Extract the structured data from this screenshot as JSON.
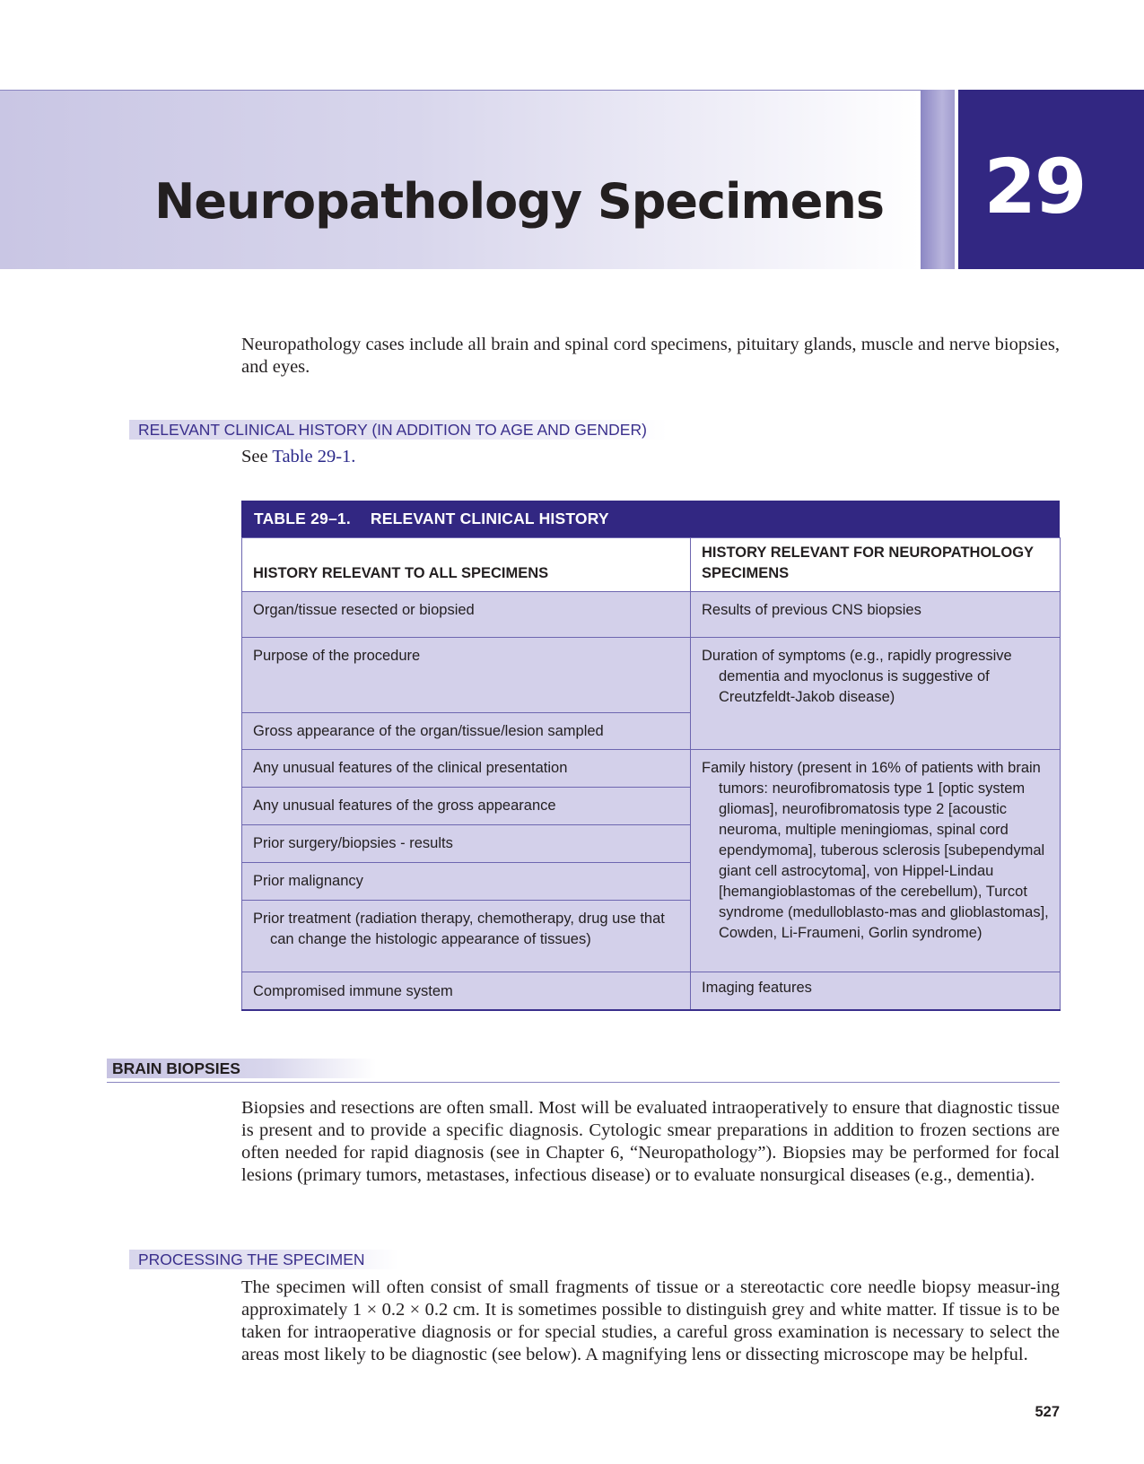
{
  "chapter": {
    "title": "Neuropathology Specimens",
    "number": "29"
  },
  "intro": "Neuropathology cases include all brain and spinal cord specimens, pituitary glands, muscle and nerve biopsies, and eyes.",
  "section_history": {
    "heading": "RELEVANT CLINICAL HISTORY (IN ADDITION TO AGE AND GENDER)",
    "see_prefix": "See ",
    "see_link": "Table 29-1."
  },
  "table": {
    "title_number": "TABLE 29–1.",
    "title_text": "RELEVANT CLINICAL HISTORY",
    "col1_header": "HISTORY RELEVANT TO ALL SPECIMENS",
    "col2_header": "HISTORY RELEVANT FOR NEUROPATHOLOGY SPECIMENS",
    "col1": [
      "Organ/tissue resected or biopsied",
      "Purpose of the procedure",
      "Gross appearance of the organ/tissue/lesion sampled",
      "Any unusual features of the clinical presentation",
      "Any unusual features of the gross appearance",
      "Prior surgery/biopsies - results",
      "Prior malignancy",
      "Prior treatment (radiation therapy, chemotherapy, drug use that can change the histologic appearance of tissues)",
      "Compromised immune system"
    ],
    "col2": [
      "Results of previous CNS biopsies",
      "Duration of symptoms (e.g., rapidly progressive dementia and myoclonus is suggestive of Creutzfeldt-Jakob disease)",
      "Family history (present in 16% of patients with brain tumors: neurofibromatosis type 1 [optic system gliomas], neurofibromatosis type 2 [acoustic neuroma, multiple meningiomas, spinal cord ependymoma], tuberous sclerosis [subependymal giant cell astrocytoma], von Hippel-Lindau [hemangioblastomas of the cerebellum), Turcot syndrome (medulloblasto-mas and glioblastomas], Cowden, Li-Fraumeni, Gorlin syndrome)",
      "Imaging features"
    ]
  },
  "section_brain": {
    "heading": "BRAIN BIOPSIES",
    "text": "Biopsies and resections are often small. Most will be evaluated intraoperatively to ensure that diagnostic tissue is present and to provide a specific diagnosis. Cytologic smear preparations in addition to frozen sections are often needed for rapid diagnosis (see in Chapter 6, “Neuropathology”). Biopsies may be performed for focal lesions (primary tumors, metastases, infectious disease) or to evaluate nonsurgical diseases (e.g., dementia)."
  },
  "section_processing": {
    "heading": "PROCESSING THE SPECIMEN",
    "text": "The specimen will often consist of small fragments of tissue or a stereotactic core needle biopsy measur-ing approximately 1 × 0.2 × 0.2 cm. It is sometimes possible to distinguish grey and white matter. If tissue is to be taken for intraoperative diagnosis or for special studies, a careful gross examination is necessary to select the areas most likely to be diagnostic (see below). A magnifying lens or dissecting microscope may be helpful."
  },
  "page_number": "527"
}
